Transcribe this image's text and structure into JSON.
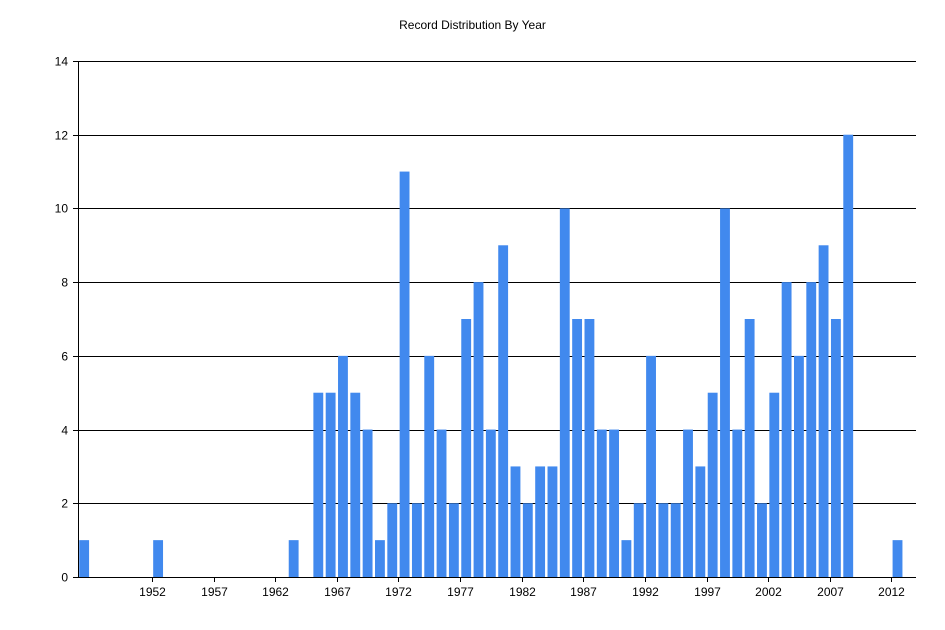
{
  "chart_data": {
    "type": "bar",
    "title": "Record Distribution By Year",
    "xlabel": "",
    "ylabel": "",
    "ylim": [
      0,
      14
    ],
    "y_ticks": [
      0,
      2,
      4,
      6,
      8,
      10,
      12,
      14
    ],
    "x_tick_labels": [
      1952,
      1957,
      1962,
      1967,
      1972,
      1977,
      1982,
      1987,
      1992,
      1997,
      2002,
      2007,
      2012
    ],
    "x_range": [
      1946,
      2014
    ],
    "grid": true,
    "bar_color": "#4189EE",
    "x": [
      1947,
      1953,
      1964,
      1966,
      1967,
      1968,
      1969,
      1970,
      1971,
      1972,
      1973,
      1974,
      1975,
      1976,
      1977,
      1978,
      1979,
      1980,
      1981,
      1982,
      1983,
      1984,
      1985,
      1986,
      1987,
      1988,
      1989,
      1990,
      1991,
      1992,
      1993,
      1994,
      1995,
      1996,
      1997,
      1998,
      1999,
      2000,
      2001,
      2002,
      2003,
      2004,
      2005,
      2006,
      2007,
      2008,
      2009,
      2010,
      2013
    ],
    "values": [
      1,
      1,
      1,
      5,
      5,
      6,
      5,
      4,
      1,
      2,
      11,
      2,
      6,
      4,
      2,
      7,
      8,
      4,
      9,
      3,
      2,
      3,
      3,
      10,
      7,
      7,
      4,
      4,
      1,
      2,
      6,
      2,
      2,
      4,
      3,
      5,
      10,
      4,
      7,
      2,
      5,
      8,
      6,
      8,
      9,
      7,
      12,
      0,
      1
    ]
  }
}
